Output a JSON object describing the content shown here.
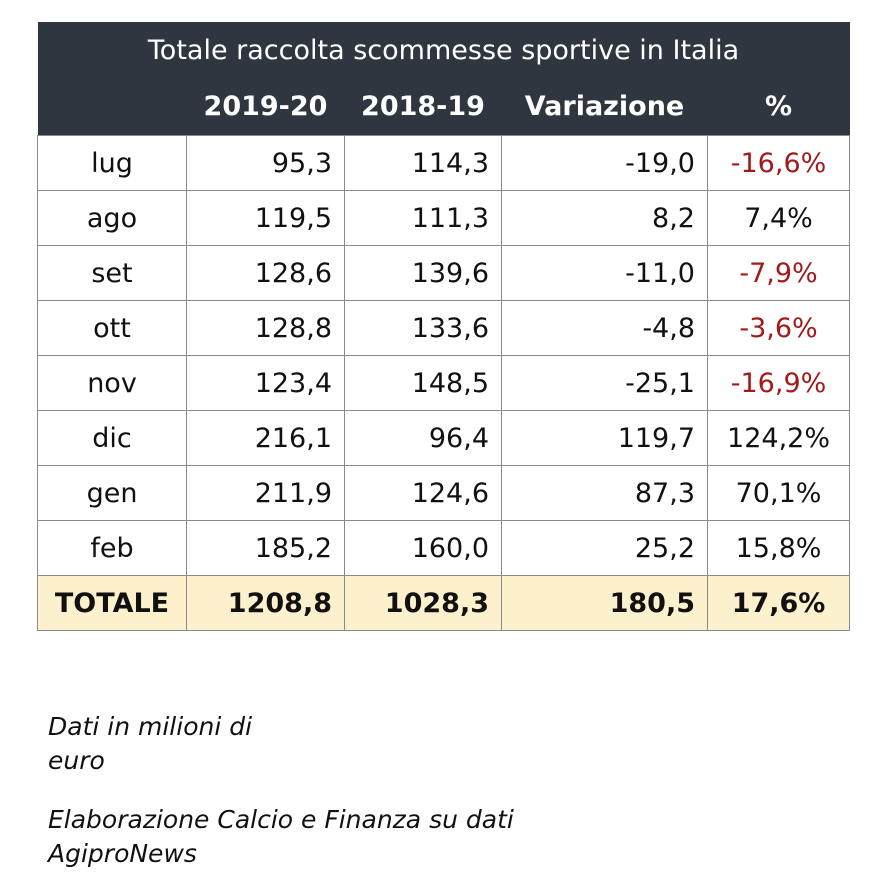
{
  "chart_data": {
    "type": "table",
    "title": "Totale raccolta scommesse sportive in Italia",
    "columns": [
      "",
      "2019-20",
      "2018-19",
      "Variazione",
      "%"
    ],
    "rows": [
      {
        "label": "lug",
        "v2019_20": "95,3",
        "v2018_19": "114,3",
        "variazione": "-19,0",
        "pct": "-16,6%",
        "negative": true
      },
      {
        "label": "ago",
        "v2019_20": "119,5",
        "v2018_19": "111,3",
        "variazione": "8,2",
        "pct": "7,4%",
        "negative": false
      },
      {
        "label": "set",
        "v2019_20": "128,6",
        "v2018_19": "139,6",
        "variazione": "-11,0",
        "pct": "-7,9%",
        "negative": true
      },
      {
        "label": "ott",
        "v2019_20": "128,8",
        "v2018_19": "133,6",
        "variazione": "-4,8",
        "pct": "-3,6%",
        "negative": true
      },
      {
        "label": "nov",
        "v2019_20": "123,4",
        "v2018_19": "148,5",
        "variazione": "-25,1",
        "pct": "-16,9%",
        "negative": true
      },
      {
        "label": "dic",
        "v2019_20": "216,1",
        "v2018_19": "96,4",
        "variazione": "119,7",
        "pct": "124,2%",
        "negative": false
      },
      {
        "label": "gen",
        "v2019_20": "211,9",
        "v2018_19": "124,6",
        "variazione": "87,3",
        "pct": "70,1%",
        "negative": false
      },
      {
        "label": "feb",
        "v2019_20": "185,2",
        "v2018_19": "160,0",
        "variazione": "25,2",
        "pct": "15,8%",
        "negative": false
      }
    ],
    "total": {
      "label": "TOTALE",
      "v2019_20": "1208,8",
      "v2018_19": "1028,3",
      "variazione": "180,5",
      "pct": "17,6%"
    }
  },
  "notes": {
    "unit": "Dati in milioni di euro",
    "source": "Elaborazione Calcio e Finanza su dati AgiproNews"
  },
  "colors": {
    "header_bg": "#2f3640",
    "header_text": "#ffffff",
    "negative_text": "#a31a1a",
    "total_bg": "#fdf0cc",
    "grid": "#8a8a8a"
  }
}
